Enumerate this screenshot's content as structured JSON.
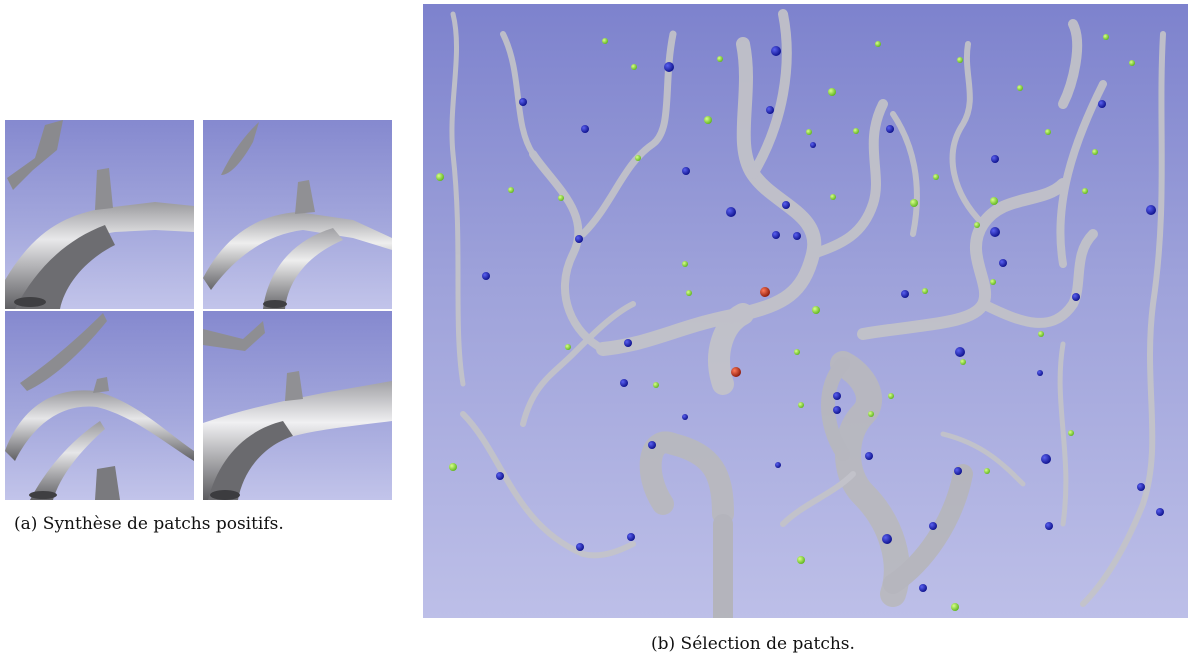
{
  "figure_a": {
    "caption": "(a) Synthèse de patchs positifs.",
    "patches": [
      "patch-1",
      "patch-2",
      "patch-3",
      "patch-4"
    ]
  },
  "figure_b": {
    "caption": "(b) Sélection de patchs.",
    "marker_colors": {
      "blue": "#1a1fb0",
      "green": "#8fe03a",
      "red": "#c8321e"
    }
  },
  "colors": {
    "background_top": "#8589cf",
    "background_bottom": "#c2c4ea",
    "vessel": "#c9c9cc"
  }
}
